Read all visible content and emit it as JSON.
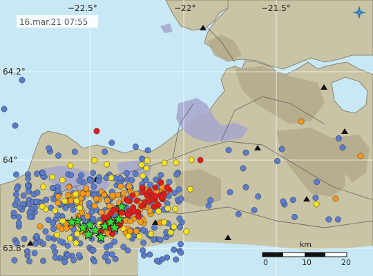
{
  "timestamp": "16.mar.21  07:55",
  "lon_labels": [
    "−22.5°",
    "−22°",
    "−21.5°"
  ],
  "lat_labels": [
    "64.2°",
    "64°",
    "63.8°"
  ],
  "scale": {
    "unit": "km",
    "ticks": [
      "0",
      "10",
      "20"
    ]
  },
  "logo_icon": "compass-star-logo-icon",
  "colors": {
    "sea": "#c9e8f5",
    "land": "#c9c4a5",
    "hills": "#b3a98a",
    "lava": "#a7a9cd",
    "quake_recent": "#e11c1c",
    "quake_orange": "#f39a1c",
    "quake_yellow": "#f2e21f",
    "quake_old": "#5a7ccc",
    "large_quake_star": "#33dd33"
  },
  "legend_semantics": {
    "dots": "earthquake locations colored by age",
    "stars": "larger earthquakes",
    "triangles": "seismic stations"
  }
}
